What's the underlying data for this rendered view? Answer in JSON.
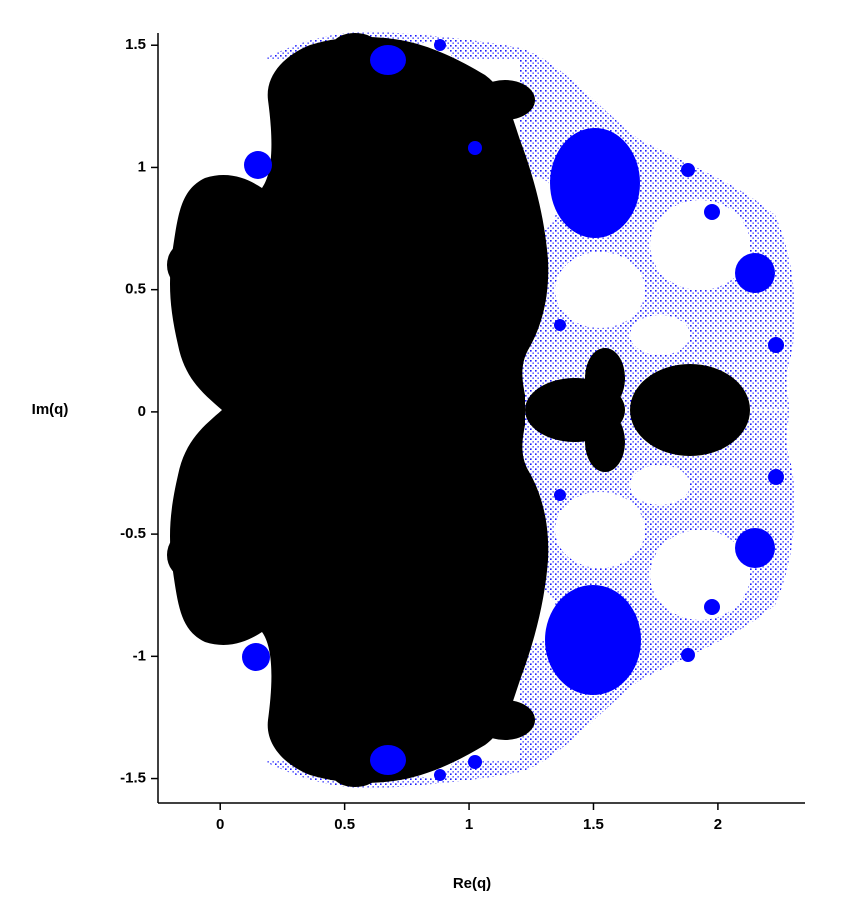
{
  "chart_data": {
    "type": "fractal",
    "xlabel": "Re(q)",
    "ylabel": "Im(q)",
    "xlim": [
      -0.25,
      2.35
    ],
    "ylim": [
      -1.6,
      1.55
    ],
    "xticks": [
      0,
      0.5,
      1,
      1.5,
      2
    ],
    "yticks": [
      -1.5,
      -1,
      -0.5,
      0,
      0.5,
      1,
      1.5
    ]
  }
}
